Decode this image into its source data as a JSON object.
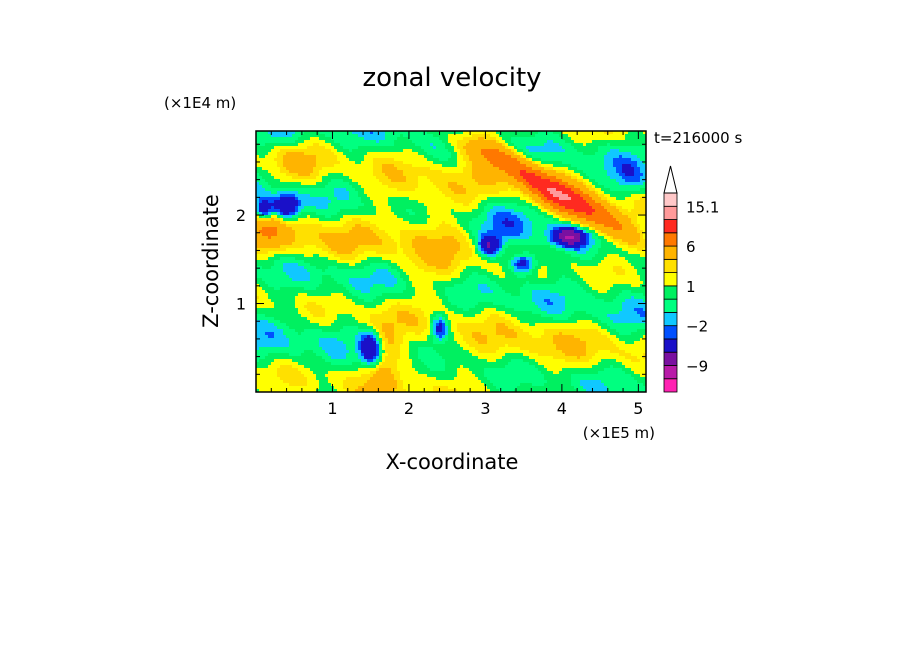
{
  "chart_data": {
    "type": "heatmap",
    "title": "zonal velocity",
    "xlabel": "X-coordinate",
    "ylabel": "Z-coordinate",
    "x_unit": "(×1E5 m)",
    "y_unit": "(×1E4 m)",
    "time_label": "t=216000 s",
    "xlim": [
      0,
      5.1
    ],
    "ylim": [
      0,
      2.95
    ],
    "x_ticks": [
      1,
      2,
      3,
      4,
      5
    ],
    "y_ticks": [
      1,
      2
    ],
    "colorbar": {
      "levels": [
        -15,
        -12,
        -9,
        -6,
        -3,
        -2,
        -1,
        0,
        1,
        2,
        3,
        6,
        9,
        12,
        15.1
      ],
      "colors": [
        "#ff22b2",
        "#b81aa8",
        "#7a10a0",
        "#1a10c8",
        "#0050ff",
        "#10c8ff",
        "#00ff80",
        "#00f060",
        "#ffff00",
        "#ffe000",
        "#ffb400",
        "#ff7800",
        "#ff2a20",
        "#ff9a9a",
        "#ffc8c8"
      ],
      "tick_labels": [
        {
          "value": 15.1,
          "label": "15.1"
        },
        {
          "value": 6,
          "label": "6"
        },
        {
          "value": 1,
          "label": "1"
        },
        {
          "value": -2,
          "label": "−2"
        },
        {
          "value": -9,
          "label": "−9"
        }
      ],
      "extend": "max"
    },
    "grid": false,
    "features": [
      {
        "x": 4.3,
        "z": 2.05,
        "value": 8,
        "sx": 0.6,
        "sz": 0.12,
        "angle": -26
      },
      {
        "x": 3.6,
        "z": 2.45,
        "value": 5,
        "sx": 0.6,
        "sz": 0.12,
        "angle": -26
      },
      {
        "x": 3.0,
        "z": 2.7,
        "value": 4,
        "sx": 0.4,
        "sz": 0.1,
        "angle": -20
      },
      {
        "x": 4.1,
        "z": 1.75,
        "value": -8,
        "sx": 0.15,
        "sz": 0.07,
        "angle": 0
      },
      {
        "x": 0.4,
        "z": 2.1,
        "value": -7,
        "sx": 0.12,
        "sz": 0.1,
        "angle": 0
      },
      {
        "x": 0.1,
        "z": 2.05,
        "value": -6,
        "sx": 0.08,
        "sz": 0.08,
        "angle": 0
      },
      {
        "x": 3.5,
        "z": 1.45,
        "value": -6,
        "sx": 0.12,
        "sz": 0.08,
        "angle": 0
      },
      {
        "x": 3.05,
        "z": 1.65,
        "value": -6,
        "sx": 0.1,
        "sz": 0.08,
        "angle": 0
      },
      {
        "x": 1.5,
        "z": 0.48,
        "value": -8,
        "sx": 0.1,
        "sz": 0.15,
        "angle": 0
      },
      {
        "x": 2.4,
        "z": 0.72,
        "value": -5,
        "sx": 0.08,
        "sz": 0.1,
        "angle": 0
      },
      {
        "x": 1.6,
        "z": 0.5,
        "value": 3,
        "sx": 0.2,
        "sz": 0.3,
        "angle": 0
      },
      {
        "x": 0.1,
        "z": 1.8,
        "value": 4,
        "sx": 0.2,
        "sz": 0.15,
        "angle": 0
      },
      {
        "x": 0.5,
        "z": 2.55,
        "value": 2,
        "sx": 0.3,
        "sz": 0.2,
        "angle": 0
      },
      {
        "x": 2.2,
        "z": 2.1,
        "value": 2,
        "sx": 0.6,
        "sz": 0.3,
        "angle": 0
      },
      {
        "x": 2.3,
        "z": 1.3,
        "value": 2,
        "sx": 0.4,
        "sz": 0.35,
        "angle": 0
      },
      {
        "x": 1.5,
        "z": 1.0,
        "value": -0.5,
        "sx": 1.0,
        "sz": 0.4,
        "angle": 0
      },
      {
        "x": 4.6,
        "z": 1.2,
        "value": -0.5,
        "sx": 0.7,
        "sz": 0.4,
        "angle": 0
      },
      {
        "x": 3.8,
        "z": 0.5,
        "value": 1.5,
        "sx": 0.8,
        "sz": 0.3,
        "angle": 0
      },
      {
        "x": 2.0,
        "z": 0.3,
        "value": 1.5,
        "sx": 0.6,
        "sz": 0.2,
        "angle": 0
      },
      {
        "x": 0.8,
        "z": 1.65,
        "value": 2,
        "sx": 0.5,
        "sz": 0.2,
        "angle": 0
      },
      {
        "x": 3.3,
        "z": 1.85,
        "value": -1.5,
        "sx": 0.3,
        "sz": 0.2,
        "angle": 0
      },
      {
        "x": 0.3,
        "z": 2.85,
        "value": -1.5,
        "sx": 0.3,
        "sz": 0.12,
        "angle": 0
      },
      {
        "x": 4.9,
        "z": 2.4,
        "value": -2,
        "sx": 0.15,
        "sz": 0.15,
        "angle": 0
      }
    ]
  }
}
